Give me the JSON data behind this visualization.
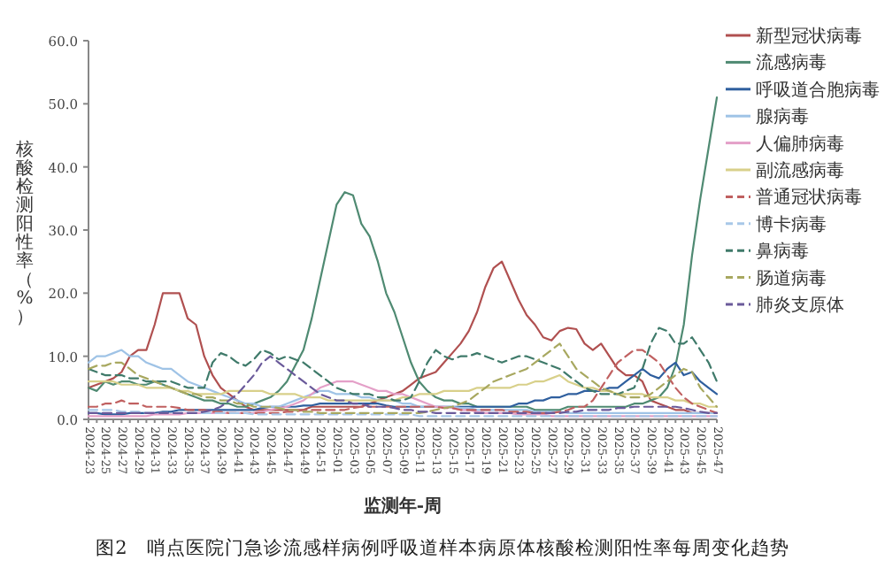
{
  "chart_data": {
    "type": "line",
    "xlabel": "监测年-周",
    "ylabel": "核酸检测阳性率（%）",
    "annotations": [
      "图2　哨点医院门急诊流感样病例呼吸道样本病原体核酸检测阳性率每周变化趋势"
    ],
    "legend": "right",
    "ylim": [
      0,
      60
    ],
    "yticks": [
      {
        "value": 0,
        "label": "0.0"
      },
      {
        "value": 10,
        "label": "10.0"
      },
      {
        "value": 20,
        "label": "20.0"
      },
      {
        "value": 30,
        "label": "30.0"
      },
      {
        "value": 40,
        "label": "40.0"
      },
      {
        "value": 50,
        "label": "50.0"
      },
      {
        "value": 60,
        "label": "60.0"
      }
    ],
    "categories": [
      "2024-23",
      null,
      "2024-25",
      null,
      "2024-27",
      null,
      "2024-29",
      null,
      "2024-31",
      null,
      "2024-33",
      null,
      "2024-35",
      null,
      "2024-37",
      null,
      "2024-39",
      null,
      "2024-41",
      null,
      "2024-43",
      null,
      "2024-45",
      null,
      "2024-47",
      null,
      "2024-49",
      null,
      "2024-51",
      null,
      "2025-01",
      null,
      "2025-03",
      null,
      "2025-05",
      null,
      "2025-07",
      null,
      "2025-09",
      null,
      "2025-11",
      null,
      "2025-13",
      null,
      "2025-15",
      null,
      "2025-17",
      null,
      "2025-19",
      null,
      "2025-21",
      null,
      "2025-23",
      null,
      "2025-25",
      null,
      "2025-27",
      null,
      "2025-29",
      null,
      "2025-31",
      null,
      "2025-33",
      null,
      "2025-35",
      null,
      "2025-37",
      null,
      "2025-39",
      null,
      "2025-41",
      null,
      "2025-43",
      null,
      "2025-45",
      null,
      "2025-47"
    ],
    "series": [
      {
        "name": "新型冠状病毒",
        "color": "#b05050",
        "line_style": "solid",
        "values": [
          5,
          5.5,
          6,
          6.5,
          7.5,
          10,
          11,
          11,
          15,
          20,
          20,
          20,
          16,
          15,
          10,
          7,
          5,
          4,
          3,
          2,
          1.5,
          1.5,
          1.5,
          1.5,
          1.5,
          1.5,
          1.5,
          2,
          2,
          2,
          2,
          2,
          2,
          2,
          2.5,
          3,
          3.5,
          4,
          4.5,
          5.5,
          6.5,
          7,
          7.5,
          9,
          10.5,
          12,
          14,
          17,
          21,
          24,
          25,
          22,
          19,
          16.5,
          15,
          13,
          12.5,
          14,
          14.5,
          14.3,
          12,
          11,
          12,
          10,
          8,
          7,
          7,
          6,
          3,
          2.5,
          2,
          1.5,
          1.5,
          1,
          1,
          1,
          1
        ]
      },
      {
        "name": "流感病毒",
        "color": "#4f8a72",
        "line_style": "solid",
        "values": [
          5,
          4.5,
          6,
          5.5,
          6,
          6,
          5.5,
          5.5,
          6,
          5.5,
          5,
          4.5,
          4,
          3.5,
          3,
          3,
          2.5,
          2.5,
          2,
          2,
          2.5,
          3,
          3.5,
          4.5,
          6,
          8.5,
          11,
          16,
          22,
          28,
          34,
          36,
          35.5,
          31,
          29,
          25,
          20,
          17,
          13,
          9,
          6,
          4.5,
          3.5,
          3,
          3,
          2.5,
          2.5,
          2,
          2,
          2,
          2,
          2,
          2,
          2,
          1.5,
          1.5,
          1.5,
          1.5,
          2,
          2,
          2,
          2,
          2,
          2,
          2,
          2,
          2.5,
          2.5,
          3,
          3.5,
          5,
          8.5,
          15,
          26,
          35,
          43,
          51
        ]
      },
      {
        "name": "呼吸道合胞病毒",
        "color": "#2f5f9e",
        "line_style": "solid",
        "values": [
          1,
          1,
          0.8,
          0.8,
          0.8,
          1,
          1,
          1,
          1,
          1.2,
          1.2,
          1.5,
          1.5,
          1.5,
          1.5,
          1.5,
          1.5,
          1.5,
          1.5,
          1.5,
          1.5,
          1.8,
          2,
          2,
          2,
          2,
          2.2,
          2.2,
          2.5,
          2.5,
          2.5,
          2.5,
          2.5,
          2.5,
          2.5,
          2.5,
          2.2,
          2,
          2,
          2,
          2,
          2,
          2,
          2,
          2,
          2,
          2,
          2,
          2,
          2,
          2,
          2,
          2.5,
          2.5,
          3,
          3,
          3.5,
          3.5,
          4,
          4,
          4.5,
          4.5,
          4.5,
          5,
          5,
          6,
          7,
          8,
          7,
          6.5,
          8,
          9,
          7,
          7.5,
          6,
          5,
          4
        ]
      },
      {
        "name": "腺病毒",
        "color": "#9fc3e6",
        "line_style": "solid",
        "values": [
          9,
          10,
          10,
          10.5,
          11,
          10,
          10,
          9,
          8.5,
          8,
          8,
          7,
          6,
          5.5,
          5,
          4.5,
          4,
          3.5,
          3,
          2.5,
          2.5,
          2,
          2,
          2,
          2.5,
          3,
          3.5,
          4,
          4.5,
          4.5,
          4,
          4,
          4,
          3.5,
          3.5,
          3,
          3,
          3,
          2.5,
          2.5,
          2,
          2,
          2,
          2,
          2,
          1.8,
          1.8,
          1.5,
          1.5,
          1.5,
          1.5,
          1.5,
          1.5,
          1.5,
          1.2,
          1.2,
          1.2,
          1.2,
          1,
          1,
          1,
          1,
          1,
          1,
          1,
          1,
          1,
          1,
          1,
          1,
          1,
          1,
          1,
          1,
          1,
          1,
          1
        ]
      },
      {
        "name": "人偏肺病毒",
        "color": "#e4a0c8",
        "line_style": "solid",
        "values": [
          0.5,
          0.5,
          0.5,
          0.5,
          0.5,
          0.5,
          0.5,
          0.5,
          0.8,
          0.8,
          0.8,
          0.8,
          1,
          1,
          1,
          1,
          1,
          1,
          1,
          1,
          1,
          1.2,
          1.5,
          1.8,
          2,
          2.5,
          3,
          4,
          5,
          5.5,
          6,
          6,
          6,
          5.5,
          5,
          4.5,
          4.5,
          4,
          4,
          3.5,
          3,
          2.5,
          2,
          2,
          1.8,
          1.5,
          1.5,
          1.2,
          1,
          1,
          1,
          1,
          0.8,
          0.8,
          0.8,
          0.8,
          0.5,
          0.5,
          0.5,
          0.5,
          0.5,
          0.5,
          0.5,
          0.5,
          0.5,
          0.5,
          0.5,
          0.5,
          0.5,
          0.5,
          0.5,
          0.5,
          0.5,
          0.5,
          0.5,
          0.5,
          0.5
        ]
      },
      {
        "name": "副流感病毒",
        "color": "#d8d08a",
        "line_style": "solid",
        "values": [
          6,
          6,
          6,
          6,
          5.5,
          5.5,
          5.5,
          5,
          5,
          5,
          5,
          4.5,
          4.5,
          4,
          4,
          4,
          4,
          4.5,
          4.5,
          4.5,
          4.5,
          4.5,
          4,
          4,
          4,
          4,
          3.5,
          3.5,
          3.5,
          3,
          3,
          3,
          3,
          3,
          3,
          3,
          3,
          3,
          3.5,
          3.5,
          4,
          4,
          4,
          4.5,
          4.5,
          4.5,
          4.5,
          5,
          5,
          5,
          5,
          5,
          5.5,
          5.5,
          6,
          6,
          6.5,
          7,
          6,
          5.5,
          5,
          5,
          4.5,
          4.5,
          4,
          4,
          4,
          4,
          3.5,
          3.5,
          3.5,
          3,
          3,
          2.5,
          2.5,
          2,
          2
        ]
      },
      {
        "name": "普通冠状病毒",
        "color": "#c06060",
        "line_style": "dashed",
        "values": [
          2,
          2,
          2.5,
          2.5,
          3,
          2.5,
          2.5,
          2,
          2,
          2,
          2,
          1.8,
          1.5,
          1.5,
          1.5,
          1.2,
          1.2,
          1,
          1,
          1,
          1,
          1,
          1,
          1,
          1.2,
          1.2,
          1.5,
          1.5,
          1.5,
          1.5,
          1.5,
          1.5,
          1.8,
          2,
          2,
          2,
          2,
          2,
          2,
          2,
          2,
          2,
          2,
          1.8,
          1.8,
          1.5,
          1.5,
          1.5,
          1.5,
          1.5,
          1.5,
          1.2,
          1.2,
          1.2,
          1,
          1,
          1,
          1.2,
          1.5,
          2,
          2,
          3,
          5,
          7,
          9,
          10,
          11,
          11,
          10,
          9,
          7,
          5,
          3.5,
          2.5,
          2,
          1.5,
          1
        ]
      },
      {
        "name": "博卡病毒",
        "color": "#a8c8e8",
        "line_style": "dashed",
        "values": [
          1.5,
          1.5,
          1.5,
          1.5,
          1.2,
          1.2,
          1.2,
          1,
          1,
          1,
          1,
          1,
          1,
          1,
          1,
          1,
          1,
          1,
          1,
          1,
          0.8,
          0.8,
          0.8,
          0.8,
          0.8,
          0.8,
          0.8,
          0.8,
          0.8,
          0.8,
          0.8,
          0.8,
          0.8,
          0.8,
          0.8,
          0.8,
          0.8,
          0.8,
          0.8,
          0.8,
          0.5,
          0.5,
          0.5,
          0.5,
          0.5,
          0.5,
          0.5,
          0.5,
          0.5,
          0.5,
          0.5,
          0.5,
          0.5,
          0.5,
          0.5,
          0.5,
          0.5,
          0.5,
          0.5,
          0.5,
          0.5,
          0.5,
          0.5,
          0.5,
          0.5,
          0.5,
          0.5,
          0.5,
          0.5,
          0.5,
          0.5,
          0.5,
          0.5,
          0.5,
          0.5,
          0.5,
          0.5
        ]
      },
      {
        "name": "鼻病毒",
        "color": "#3f7a6a",
        "line_style": "dashed",
        "values": [
          8,
          7.5,
          7,
          7,
          7,
          6.5,
          6.5,
          6,
          6,
          6,
          6,
          5.5,
          5,
          5,
          5,
          9,
          10.5,
          10,
          9,
          8.5,
          9.5,
          11,
          10.5,
          9.5,
          10,
          9.5,
          9,
          8,
          7,
          6,
          5,
          4.5,
          4,
          4,
          4,
          3.5,
          3.5,
          3,
          3,
          3.5,
          6,
          9,
          11,
          10,
          9.5,
          10,
          10,
          10.5,
          10,
          9.5,
          9,
          9.5,
          10,
          10,
          9.5,
          9,
          8.5,
          8,
          7,
          6,
          5,
          4.5,
          4,
          4,
          4,
          4.5,
          5,
          8,
          12,
          14.5,
          14,
          12,
          12,
          13,
          11,
          9,
          6
        ]
      },
      {
        "name": "肠道病毒",
        "color": "#a8a860",
        "line_style": "dashed",
        "values": [
          8,
          8.5,
          8.5,
          9,
          9,
          8,
          7,
          6.5,
          6,
          5.5,
          5,
          4.5,
          4,
          4,
          3.5,
          3.5,
          3,
          3,
          2.5,
          2.5,
          2,
          2,
          2,
          1.8,
          1.5,
          1.5,
          1.2,
          1.2,
          1,
          1,
          1,
          1,
          1,
          1,
          1,
          1,
          1,
          1,
          1,
          1,
          1,
          1.2,
          1.5,
          1.8,
          2,
          2.5,
          3,
          4,
          5,
          6,
          6.5,
          7,
          7.5,
          8,
          9,
          10,
          11,
          12,
          10,
          8,
          7,
          6,
          5,
          4.5,
          4,
          3.5,
          3.5,
          3.5,
          4,
          5,
          6,
          7,
          8,
          7.5,
          5,
          3.5,
          2
        ]
      },
      {
        "name": "肺炎支原体",
        "color": "#6a5a9a",
        "line_style": "dashed",
        "values": [
          1,
          1,
          1,
          1,
          1,
          1,
          1,
          1,
          1,
          1,
          1,
          1,
          1,
          1,
          1.2,
          1.5,
          2,
          3,
          4,
          5.5,
          7,
          9,
          10,
          9,
          8,
          7,
          6,
          5,
          4,
          3.5,
          3,
          3,
          2.5,
          2.5,
          2,
          2,
          2,
          1.8,
          1.5,
          1.5,
          1.2,
          1.2,
          1,
          1,
          1,
          1,
          1,
          1,
          1,
          1,
          1,
          1,
          1,
          1,
          1,
          1,
          1,
          1,
          1.2,
          1.2,
          1.5,
          1.5,
          1.5,
          1.5,
          1.8,
          1.8,
          2,
          2,
          2,
          2,
          2,
          2,
          1.8,
          1.5,
          1.2,
          1,
          1
        ]
      }
    ]
  }
}
